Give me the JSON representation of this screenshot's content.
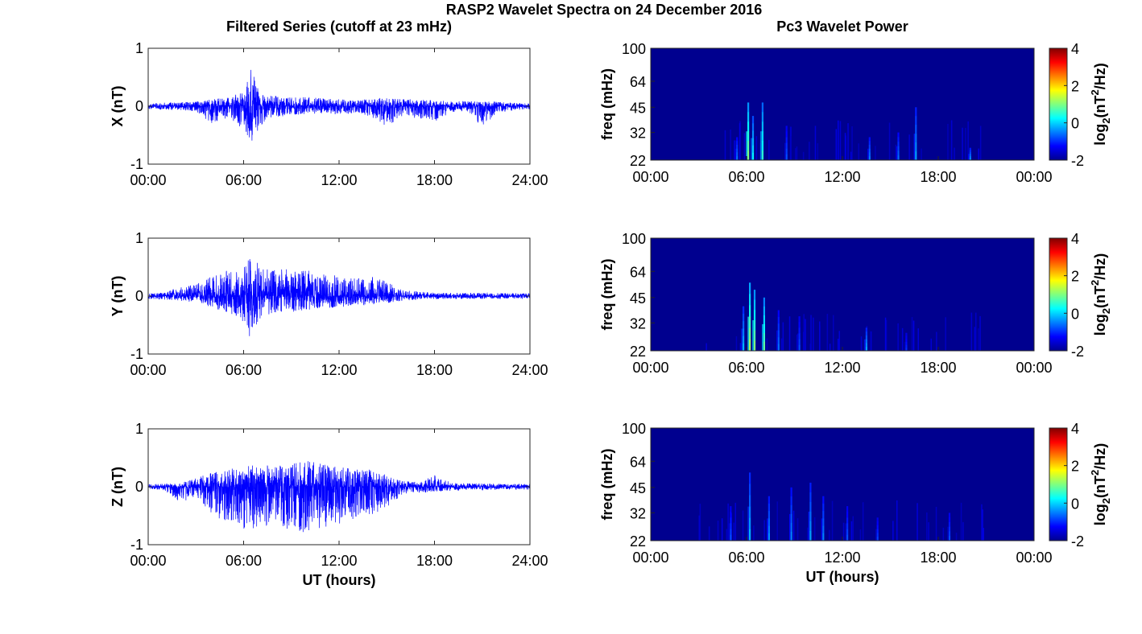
{
  "figure": {
    "suptitle": "RASP2 Wavelet Spectra on 24 December 2016",
    "left_title": "Filtered Series (cutoff at 23 mHz)",
    "right_title": "Pc3 Wavelet Power",
    "xlabel": "UT (hours)"
  },
  "colors": {
    "trace": "#0000ff",
    "background_power": "#00008f"
  },
  "chart_data": [
    {
      "type": "line",
      "panel": "X",
      "ylabel": "X (nT)",
      "ylim": [
        -1,
        1
      ],
      "yticks": [
        "-1",
        "0",
        "1"
      ],
      "xlim": [
        0,
        24
      ],
      "xticks": [
        "00:00",
        "06:00",
        "12:00",
        "18:00",
        "24:00"
      ],
      "envelope_hours": [
        0,
        1,
        2,
        3,
        4,
        5,
        6,
        6.5,
        7,
        8,
        9,
        10,
        11,
        12,
        13,
        14,
        15,
        16,
        17,
        18,
        19,
        20,
        21,
        22,
        23,
        24
      ],
      "envelope_pos": [
        0.05,
        0.06,
        0.07,
        0.08,
        0.12,
        0.15,
        0.25,
        0.75,
        0.2,
        0.18,
        0.15,
        0.16,
        0.14,
        0.12,
        0.1,
        0.13,
        0.15,
        0.12,
        0.12,
        0.1,
        0.09,
        0.09,
        0.08,
        0.08,
        0.06,
        0.05
      ],
      "envelope_neg": [
        -0.05,
        -0.06,
        -0.07,
        -0.1,
        -0.3,
        -0.2,
        -0.4,
        -0.65,
        -0.35,
        -0.2,
        -0.15,
        -0.14,
        -0.12,
        -0.15,
        -0.12,
        -0.18,
        -0.35,
        -0.2,
        -0.2,
        -0.3,
        -0.1,
        -0.1,
        -0.35,
        -0.12,
        -0.07,
        -0.05
      ]
    },
    {
      "type": "line",
      "panel": "Y",
      "ylabel": "Y (nT)",
      "ylim": [
        -1,
        1
      ],
      "yticks": [
        "-1",
        "0",
        "1"
      ],
      "xlim": [
        0,
        24
      ],
      "xticks": [
        "00:00",
        "06:00",
        "12:00",
        "18:00",
        "24:00"
      ],
      "envelope_hours": [
        0,
        1,
        2,
        3,
        4,
        5,
        6,
        6.3,
        7,
        8,
        9,
        10,
        11,
        12,
        13,
        14,
        15,
        16,
        17,
        18,
        19,
        20,
        21,
        22,
        23,
        24
      ],
      "envelope_pos": [
        0.05,
        0.06,
        0.15,
        0.2,
        0.35,
        0.45,
        0.5,
        0.75,
        0.55,
        0.5,
        0.45,
        0.45,
        0.4,
        0.35,
        0.3,
        0.35,
        0.25,
        0.1,
        0.08,
        0.06,
        0.06,
        0.06,
        0.05,
        0.05,
        0.05,
        0.05
      ],
      "envelope_neg": [
        -0.05,
        -0.06,
        -0.08,
        -0.1,
        -0.2,
        -0.3,
        -0.45,
        -0.75,
        -0.4,
        -0.3,
        -0.28,
        -0.25,
        -0.2,
        -0.2,
        -0.15,
        -0.15,
        -0.12,
        -0.08,
        -0.06,
        -0.05,
        -0.05,
        -0.05,
        -0.05,
        -0.05,
        -0.05,
        -0.05
      ]
    },
    {
      "type": "line",
      "panel": "Z",
      "ylabel": "Z (nT)",
      "ylim": [
        -1,
        1
      ],
      "yticks": [
        "-1",
        "0",
        "1"
      ],
      "xlim": [
        0,
        24
      ],
      "xticks": [
        "00:00",
        "06:00",
        "12:00",
        "18:00",
        "24:00"
      ],
      "envelope_hours": [
        0,
        1,
        2,
        3,
        4,
        5,
        6,
        7,
        8,
        9,
        10,
        11,
        12,
        13,
        14,
        15,
        16,
        17,
        18,
        19,
        20,
        21,
        22,
        23,
        24
      ],
      "envelope_pos": [
        0.05,
        0.05,
        0.06,
        0.15,
        0.25,
        0.3,
        0.35,
        0.4,
        0.35,
        0.4,
        0.45,
        0.4,
        0.35,
        0.3,
        0.3,
        0.2,
        0.1,
        0.08,
        0.2,
        0.08,
        0.06,
        0.06,
        0.05,
        0.05,
        0.05
      ],
      "envelope_neg": [
        -0.05,
        -0.05,
        -0.3,
        -0.15,
        -0.5,
        -0.7,
        -0.75,
        -0.7,
        -0.7,
        -0.75,
        -0.8,
        -0.7,
        -0.65,
        -0.55,
        -0.5,
        -0.35,
        -0.15,
        -0.1,
        -0.1,
        -0.07,
        -0.06,
        -0.06,
        -0.05,
        -0.05,
        -0.05
      ]
    },
    {
      "type": "heatmap",
      "panel": "X",
      "ylabel": "freq (mHz)",
      "yticks": [
        "100",
        "64",
        "45",
        "32",
        "22"
      ],
      "xticks": [
        "00:00",
        "06:00",
        "12:00",
        "18:00",
        "00:00"
      ],
      "xlim": [
        0,
        24
      ],
      "colorbar_label": "log2(nT^2/Hz)",
      "colorbar_range": [
        -2,
        4
      ],
      "colorbar_ticks": [
        "4",
        "2",
        "0",
        "-2"
      ],
      "hotspots": [
        {
          "t": 6.1,
          "f_top": 48,
          "v": 1.0
        },
        {
          "t": 6.4,
          "f_top": 40,
          "v": 0.2
        },
        {
          "t": 7.0,
          "f_top": 48,
          "v": 0.5
        },
        {
          "t": 5.4,
          "f_top": 30,
          "v": -0.6
        },
        {
          "t": 8.5,
          "f_top": 35,
          "v": -0.8
        },
        {
          "t": 13.7,
          "f_top": 30,
          "v": -0.5
        },
        {
          "t": 15.5,
          "f_top": 32,
          "v": -0.6
        },
        {
          "t": 16.6,
          "f_top": 45,
          "v": -0.3
        },
        {
          "t": 20.0,
          "f_top": 26,
          "v": -0.4
        }
      ]
    },
    {
      "type": "heatmap",
      "panel": "Y",
      "ylabel": "freq (mHz)",
      "yticks": [
        "100",
        "64",
        "45",
        "32",
        "22"
      ],
      "xticks": [
        "00:00",
        "06:00",
        "12:00",
        "18:00",
        "00:00"
      ],
      "xlim": [
        0,
        24
      ],
      "colorbar_label": "log2(nT^2/Hz)",
      "colorbar_range": [
        -2,
        4
      ],
      "colorbar_ticks": [
        "4",
        "2",
        "0",
        "-2"
      ],
      "hotspots": [
        {
          "t": 6.2,
          "f_top": 55,
          "v": 1.2
        },
        {
          "t": 6.5,
          "f_top": 50,
          "v": 1.0
        },
        {
          "t": 7.1,
          "f_top": 45,
          "v": 0.8
        },
        {
          "t": 5.8,
          "f_top": 40,
          "v": -0.2
        },
        {
          "t": 8.0,
          "f_top": 38,
          "v": -0.6
        },
        {
          "t": 9.3,
          "f_top": 35,
          "v": -0.8
        },
        {
          "t": 13.5,
          "f_top": 30,
          "v": -0.3
        },
        {
          "t": 16.0,
          "f_top": 28,
          "v": -1.0
        }
      ]
    },
    {
      "type": "heatmap",
      "panel": "Z",
      "ylabel": "freq (mHz)",
      "yticks": [
        "100",
        "64",
        "45",
        "32",
        "22"
      ],
      "xticks": [
        "00:00",
        "06:00",
        "12:00",
        "18:00",
        "00:00"
      ],
      "xlim": [
        0,
        24
      ],
      "colorbar_label": "log2(nT^2/Hz)",
      "colorbar_range": [
        -2,
        4
      ],
      "colorbar_ticks": [
        "4",
        "2",
        "0",
        "-2"
      ],
      "hotspots": [
        {
          "t": 5.0,
          "f_top": 35,
          "v": -0.8
        },
        {
          "t": 6.2,
          "f_top": 55,
          "v": -0.2
        },
        {
          "t": 7.4,
          "f_top": 40,
          "v": -0.4
        },
        {
          "t": 8.8,
          "f_top": 45,
          "v": -0.5
        },
        {
          "t": 10.0,
          "f_top": 48,
          "v": -0.3
        },
        {
          "t": 10.8,
          "f_top": 40,
          "v": -0.5
        },
        {
          "t": 12.3,
          "f_top": 35,
          "v": -0.8
        },
        {
          "t": 14.2,
          "f_top": 30,
          "v": -0.9
        },
        {
          "t": 18.7,
          "f_top": 32,
          "v": -0.8
        }
      ]
    }
  ]
}
